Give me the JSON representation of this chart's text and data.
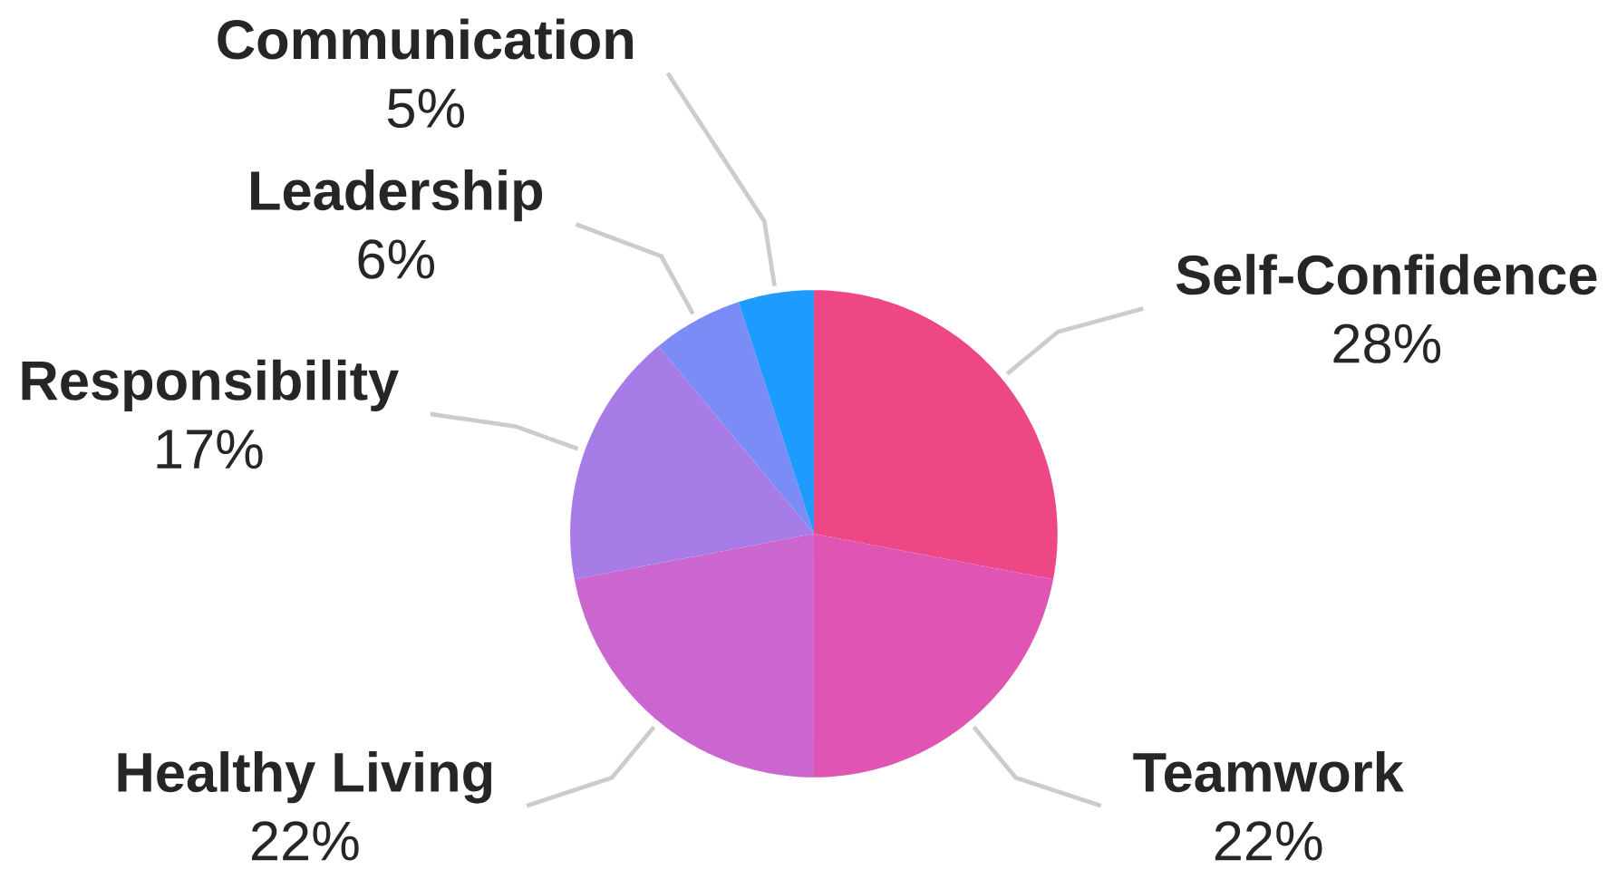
{
  "chart_data": {
    "type": "pie",
    "categories": [
      "Self-Confidence",
      "Teamwork",
      "Healthy Living",
      "Responsibility",
      "Leadership",
      "Communication"
    ],
    "values": [
      28,
      22,
      22,
      17,
      6,
      5
    ],
    "value_labels": [
      "28%",
      "22%",
      "22%",
      "17%",
      "6%",
      "5%"
    ],
    "colors": [
      "#ee4785",
      "#e055b3",
      "#cc66cf",
      "#a77ce6",
      "#7b8cf6",
      "#1e9bff"
    ]
  }
}
